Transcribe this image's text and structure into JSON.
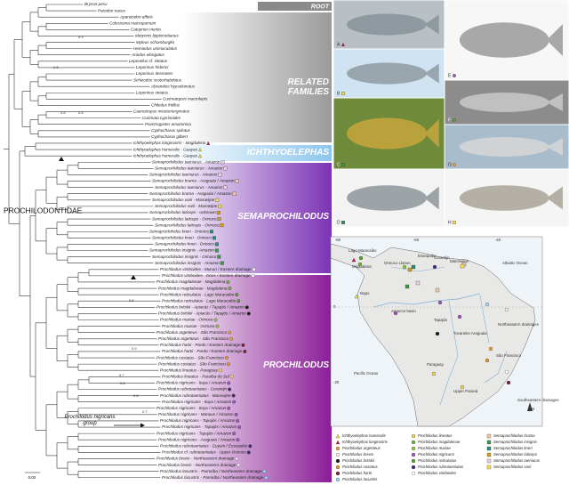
{
  "tree": {
    "tips": [
      "Brycon pesu",
      "Parodon nasus",
      "Apareiodon affinis",
      "Colossoma macropomum",
      "Catoprion mento",
      "Metynnis lippincottianus",
      "Myleus schomburgkii",
      "Hemiodus unimaculatus",
      "Anodus elongatus",
      "Leporellus cf. vittatus",
      "Leporinus friderici",
      "Leporinus desmotes",
      "Schizodon scotorhabdotus",
      "Abramites hypselonotus",
      "Leporinus striatus",
      "Curimatopsis macrolepis",
      "Chilodus fritillus",
      "Caenotropus mestomorgmatos",
      "Curimata cyprinoides",
      "Psectrogaster amazonica",
      "Cyphocharax spilotus",
      "Cyphocharax gilbert",
      "Ichthyoelephas longirostris - Magdalena",
      "Ichthyoelephas humeralis - Guayas",
      "Ichthyoelephas humeralis - Guayas",
      "Semaprochilodus taeniurus - Amazon",
      "Semaprochilodus taeniurus - Amazon",
      "Semaprochilodus taeniurus - Amazon",
      "Semaprochilodus brama - Araguaia / Amazon",
      "Semaprochilodus taeniurus - Amazon",
      "Semaprochilodus brama - Araguaia / Amazon",
      "Semaprochilodus varii - Marowijne",
      "Semaprochilodus varii - Marowijne",
      "Semaprochilodus laticeps - unknown",
      "Semaprochilodus laticeps - Orinoco",
      "Semaprochilodus laticeps - Orinoco",
      "Semaprochilodus kneri - Orinoco",
      "Semaprochilodus kneri - Orinoco",
      "Semaprochilodus kneri - Orinoco",
      "Semaprochilodus insignis - Amazon",
      "Semaprochilodus insignis - Orinoco",
      "Semaprochilodus insignis - Amazon",
      "Prochilodus vimboides - Mucuri / Eastern drainage",
      "Prochilodus vimboides - Doce / Eastern drainage",
      "Prochilodus magdalenae - Magdalena",
      "Prochilodus magdalenae - Magdalena",
      "Prochilodus reticulatus - Lago Maracaibo",
      "Prochilodus reticulatus - Lago Maracaibo",
      "Prochilodus britskii - Apiacás / Tapajós / Amazon",
      "Prochilodus britskii - Apiacás / Tapajós / Amazon",
      "Prochilodus mariae - Orinoco",
      "Prochilodus mariae - Orinoco",
      "Prochilodus argenteus - São Francisco",
      "Prochilodus argenteus - São Francisco",
      "Prochilodus hartii - Pardo / Eastern drainage",
      "Prochilodus hartii - Pardo / Eastern drainage",
      "Prochilodus costatus - São Francisco",
      "Prochilodus costatus - São Francisco",
      "Prochilodus lineatus - Paraguay",
      "Prochilodus lineatus - Paraíba do Sul",
      "Prochilodus nigricans - Itaya / Amazon",
      "Prochilodus rubrotaeniatus - Corantijn",
      "Prochilodus rubrotaeniatus - Marowijne",
      "Prochilodus nigricans - Itaya / Amazon",
      "Prochilodus nigricans - Itaya / Amazon",
      "Prochilodus nigricans - Manaus / Amazon",
      "Prochilodus nigricans - Tapajós / Amazon",
      "Prochilodus nigricans - Tapajós / Amazon",
      "Prochilodus nigricans - Tapajós / Amazon",
      "Prochilodus nigricans - Araguaia / Amazon",
      "Prochilodus rubrotaeniatus - Cuyuni / Essequibo",
      "Prochilodus cf. rubrotaeniatus - Upper Orinoco",
      "Prochilodus brevis - Northeastern drainage",
      "Prochilodus brevis - Northeastern drainage",
      "Prochilodus lacustris - Parnaíba / Northeastern drainage",
      "Prochilodus lacustris - Parnaíba / Northeastern drainage"
    ],
    "support": [
      "0.9",
      "0.6",
      "0.8",
      "0.8",
      "0.6",
      "0.9",
      "0.7",
      "0.6",
      "0.8",
      "0.7"
    ],
    "clades": {
      "root": "ROOT",
      "related": "RELATED FAMILIES",
      "ichthyoelephas": "ICHTHYOELEPHAS",
      "semaprochilodus": "SEMAPROCHILODUS",
      "prochilodus": "PROCHILODUS"
    },
    "family": "PROCHILODONTIDAE",
    "group": "Prochilodus nigricans group",
    "scale": "0.02"
  },
  "photos": {
    "labels": [
      "A",
      "B",
      "C",
      "D",
      "E",
      "F",
      "G",
      "H"
    ]
  },
  "map": {
    "ticks_top": [
      "-80",
      "-60",
      "-40"
    ],
    "ticks_left": [
      "0",
      "-20"
    ],
    "places": [
      "Lago Maracaibo",
      "Magdalena",
      "Orinoco Llanos",
      "Essequibo",
      "Corantijn",
      "Maroiwijne",
      "Atlantic Ocean",
      "Napo",
      "Amazon basin",
      "Tapajós",
      "Tocantins-Araguaia",
      "Northeastern drainages",
      "São Francisco",
      "Paraguay",
      "Upper Paraná",
      "Pacific Ocean",
      "Southeastern drainages",
      "N"
    ],
    "legend": [
      {
        "label": "Ichthyoelephas humeralis",
        "shape": "triangle",
        "color": "#f2e34c"
      },
      {
        "label": "Ichthyoelephas longirostris",
        "shape": "triangle",
        "color": "#c0186b"
      },
      {
        "label": "Prochilodus argenteus",
        "shape": "circle",
        "color": "#f0a030"
      },
      {
        "label": "Prochilodus brevis",
        "shape": "circle",
        "color": "#eeeeee"
      },
      {
        "label": "Prochilodus britskii",
        "shape": "circle",
        "color": "#1a1a1a"
      },
      {
        "label": "Prochilodus costatus",
        "shape": "circle",
        "color": "#d99a2b"
      },
      {
        "label": "Prochilodus hartii",
        "shape": "circle",
        "color": "#7b1e3a"
      },
      {
        "label": "Prochilodus lacustris",
        "shape": "circle",
        "color": "#9fd8f0"
      },
      {
        "label": "Prochilodus lineatus",
        "shape": "circle",
        "color": "#e6d75a"
      },
      {
        "label": "Prochilodus magdalenae",
        "shape": "circle",
        "color": "#6db33f"
      },
      {
        "label": "Prochilodus mariae",
        "shape": "circle",
        "color": "#8cc63f"
      },
      {
        "label": "Prochilodus nigricans",
        "shape": "circle",
        "color": "#9b59b6"
      },
      {
        "label": "Prochilodus reticulatus",
        "shape": "circle",
        "color": "#5aa02c"
      },
      {
        "label": "Prochilodus rubrotaeniatus",
        "shape": "circle",
        "color": "#4b2a7b"
      },
      {
        "label": "Prochilodus vimboides",
        "shape": "circle",
        "color": "#ffffff"
      },
      {
        "label": "Semaprochilodus brama",
        "shape": "square",
        "color": "#f0c8a0"
      },
      {
        "label": "Semaprochilodus insignis",
        "shape": "square",
        "color": "#3a9a4a"
      },
      {
        "label": "Semaprochilodus kneri",
        "shape": "square",
        "color": "#2e8b7a"
      },
      {
        "label": "Semaprochilodus laticeps",
        "shape": "square",
        "color": "#d4a017"
      },
      {
        "label": "Semaprochilodus taeniurus",
        "shape": "square",
        "color": "#e8d0e0"
      },
      {
        "label": "Semaprochilodus varii",
        "shape": "square",
        "color": "#f5e050"
      }
    ]
  }
}
